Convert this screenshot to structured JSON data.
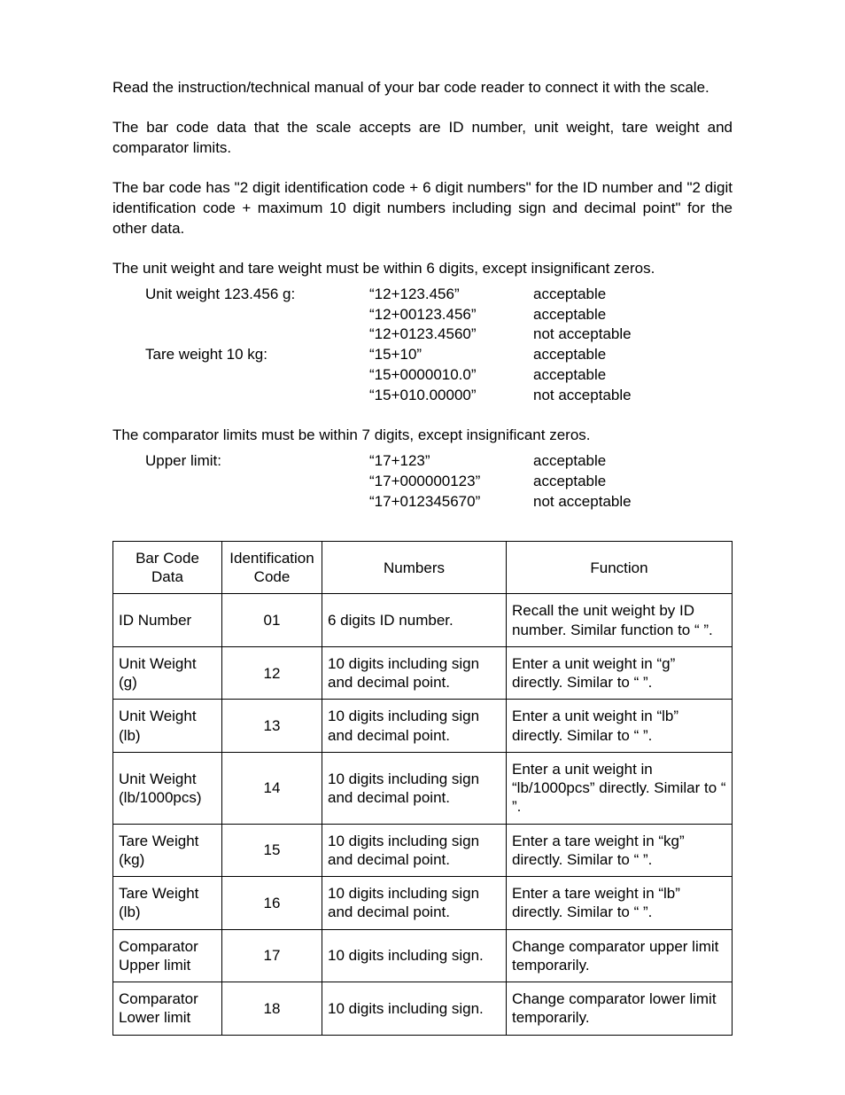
{
  "paragraphs": {
    "p1": "Read the instruction/technical manual of your bar code reader to connect it with the scale.",
    "p2": "The bar code data that the scale accepts are ID number, unit weight, tare weight and comparator limits.",
    "p3": "The bar code has \"2 digit identification code + 6 digit numbers\" for the ID number and \"2 digit identification code + maximum 10 digit numbers including sign and decimal point\" for the other data.",
    "p4": "The unit weight and tare weight must be within 6 digits, except insignificant zeros.",
    "p5": "The comparator limits must be within 7 digits, except insignificant zeros."
  },
  "examples1": {
    "label1": "Unit weight 123.456 g:",
    "label2": "Tare weight 10 kg:",
    "rows": [
      {
        "code": "“12+123.456”",
        "status": "acceptable"
      },
      {
        "code": "“12+00123.456”",
        "status": "acceptable"
      },
      {
        "code": "“12+0123.4560”",
        "status": "not acceptable"
      },
      {
        "code": "“15+10”",
        "status": "acceptable"
      },
      {
        "code": "“15+0000010.0”",
        "status": "acceptable"
      },
      {
        "code": "“15+010.00000”",
        "status": "not acceptable"
      }
    ]
  },
  "examples2": {
    "label1": "Upper limit:",
    "rows": [
      {
        "code": "“17+123”",
        "status": "acceptable"
      },
      {
        "code": "“17+000000123”",
        "status": "acceptable"
      },
      {
        "code": "“17+012345670”",
        "status": "not acceptable"
      }
    ]
  },
  "table": {
    "headers": {
      "c1": "Bar Code Data",
      "c2": "Identification Code",
      "c3": "Numbers",
      "c4": "Function"
    },
    "rows": [
      {
        "data": "ID Number",
        "id": "01",
        "num": "6 digits ID number.",
        "fn": "Recall the unit weight by ID number. Similar function to “ ”."
      },
      {
        "data": "Unit Weight (g)",
        "id": "12",
        "num": "10 digits including sign and decimal point.",
        "fn": "Enter a unit weight in “g” directly. Similar to “ ”."
      },
      {
        "data": "Unit Weight (lb)",
        "id": "13",
        "num": "10 digits including sign and decimal point.",
        "fn": "Enter a unit weight in “lb” directly. Similar to “ ”."
      },
      {
        "data": "Unit Weight (lb/1000pcs)",
        "id": "14",
        "num": "10 digits including sign and decimal point.",
        "fn": "Enter a unit weight in “lb/1000pcs” directly. Similar to “ ”."
      },
      {
        "data": "Tare Weight (kg)",
        "id": "15",
        "num": "10 digits including sign and decimal point.",
        "fn": "Enter a tare weight in “kg” directly. Similar to “ ”."
      },
      {
        "data": "Tare Weight (lb)",
        "id": "16",
        "num": "10 digits including sign and decimal point.",
        "fn": "Enter a tare weight in “lb” directly. Similar to “ ”."
      },
      {
        "data": "Comparator Upper limit",
        "id": "17",
        "num": "10 digits including sign.",
        "fn": "Change comparator upper limit temporarily."
      },
      {
        "data": "Comparator Lower limit",
        "id": "18",
        "num": "10 digits including sign.",
        "fn": "Change comparator lower limit temporarily."
      }
    ]
  }
}
